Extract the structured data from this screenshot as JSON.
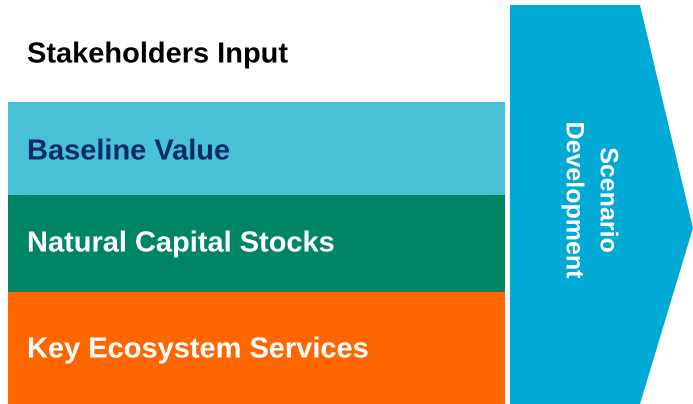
{
  "layers": [
    {
      "label": "Stakeholders Input"
    },
    {
      "label": "Baseline Value"
    },
    {
      "label": "Natural Capital Stocks"
    },
    {
      "label": "Key Ecosystem Services"
    }
  ],
  "arrow": {
    "lines": [
      "Scenario",
      "Development"
    ]
  }
}
